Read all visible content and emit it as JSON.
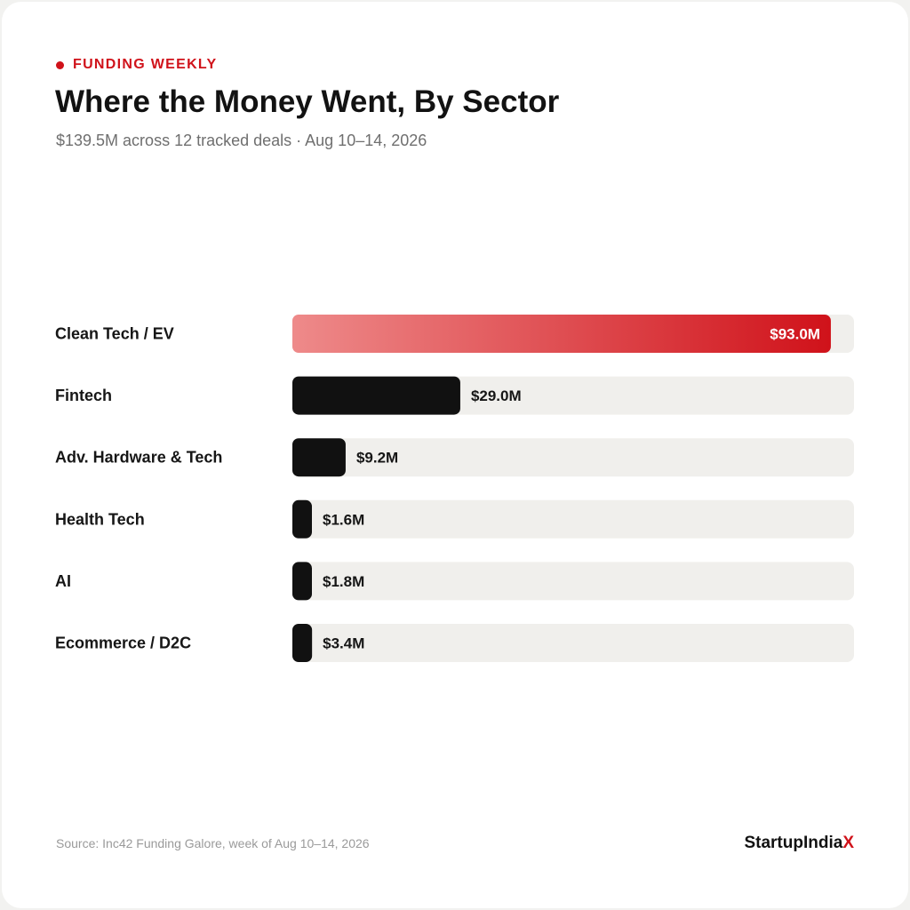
{
  "header": {
    "eyebrow": "FUNDING WEEKLY",
    "title": "Where the Money Went, By Sector",
    "subtitle": "$139.5M across 12 tracked deals · Aug 10–14, 2026"
  },
  "footer": {
    "source": "Source: Inc42 Funding Galore, week of Aug 10–14, 2026",
    "brand_main": "StartupIndia",
    "brand_accent": "X"
  },
  "colors": {
    "accent": "#d0121a",
    "accent_light": "#ee8a8a",
    "bar_dark": "#111111",
    "track": "#f0efec"
  },
  "chart_data": {
    "type": "bar",
    "orientation": "horizontal",
    "title": "Where the Money Went, By Sector",
    "categories": [
      "Clean Tech / EV",
      "Fintech",
      "Adv. Hardware & Tech",
      "Health Tech",
      "AI",
      "Ecommerce / D2C"
    ],
    "values": [
      93.0,
      29.0,
      9.2,
      1.6,
      1.8,
      3.4
    ],
    "value_labels": [
      "$93.0M",
      "$29.0M",
      "$9.2M",
      "$1.6M",
      "$1.8M",
      "$3.4M"
    ],
    "unit": "$M",
    "xlim": [
      0,
      97
    ],
    "highlight_index": 0,
    "grid": false,
    "legend": "none"
  }
}
